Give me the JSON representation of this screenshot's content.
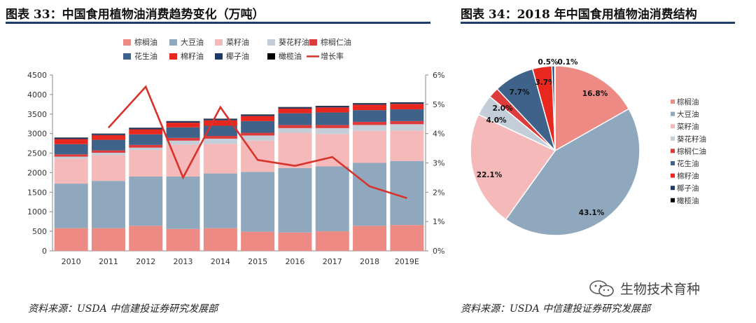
{
  "left": {
    "title": "图表 33：中国食用植物油消费趋势变化（万吨）",
    "source": "资料来源：USDA   中信建投证券研究发展部"
  },
  "right": {
    "title": "图表 34：2018 年中国食用植物油消费结构",
    "source": "资料来源：USDA   中信建投证券研究发展部"
  },
  "watermark": {
    "text": "生物技术育种",
    "icon": "wechat-icon"
  },
  "chart_data": [
    {
      "type": "bar",
      "stacked": true,
      "title": "中国食用植物油消费趋势变化（万吨）",
      "categories": [
        "2010",
        "2011",
        "2012",
        "2013",
        "2014",
        "2015",
        "2016",
        "2017",
        "2018",
        "2019E"
      ],
      "ylim": [
        0,
        4500
      ],
      "yticks": [
        0,
        500,
        1000,
        1500,
        2000,
        2500,
        3000,
        3500,
        4000,
        4500
      ],
      "y2lim": [
        0,
        6
      ],
      "y2ticks": [
        "0%",
        "1%",
        "2%",
        "3%",
        "4%",
        "5%",
        "6%"
      ],
      "series": [
        {
          "name": "棕榈油",
          "color": "#ee8a84",
          "values": [
            580,
            580,
            640,
            560,
            580,
            490,
            470,
            500,
            640,
            660
          ]
        },
        {
          "name": "大豆油",
          "color": "#8fa8be",
          "values": [
            1140,
            1210,
            1260,
            1340,
            1400,
            1530,
            1650,
            1660,
            1610,
            1640
          ]
        },
        {
          "name": "菜籽油",
          "color": "#f4b9b8",
          "values": [
            640,
            660,
            680,
            820,
            760,
            800,
            900,
            830,
            820,
            780
          ]
        },
        {
          "name": "葵花籽油",
          "color": "#c3ced8",
          "values": [
            50,
            60,
            60,
            100,
            130,
            130,
            120,
            150,
            150,
            160
          ]
        },
        {
          "name": "棕榈仁油",
          "color": "#dd3b3b",
          "values": [
            60,
            60,
            70,
            70,
            70,
            70,
            80,
            80,
            80,
            80
          ]
        },
        {
          "name": "花生油",
          "color": "#3e6289",
          "values": [
            260,
            270,
            270,
            270,
            260,
            300,
            300,
            320,
            300,
            300
          ]
        },
        {
          "name": "棉籽油",
          "color": "#e8281e",
          "values": [
            130,
            120,
            130,
            120,
            140,
            130,
            120,
            130,
            140,
            140
          ]
        },
        {
          "name": "椰子油",
          "color": "#1d3a66",
          "values": [
            30,
            30,
            30,
            30,
            30,
            30,
            30,
            30,
            30,
            30
          ]
        },
        {
          "name": "橄榄油",
          "color": "#000000",
          "values": [
            10,
            10,
            10,
            10,
            10,
            10,
            10,
            10,
            10,
            10
          ]
        }
      ],
      "line": {
        "name": "增长率",
        "color": "#d8322b",
        "axis": "right",
        "values": [
          null,
          4.2,
          5.6,
          2.5,
          4.9,
          3.1,
          2.9,
          3.2,
          2.2,
          1.8
        ]
      }
    },
    {
      "type": "pie",
      "title": "2018 年中国食用植物油消费结构",
      "slices": [
        {
          "name": "棕榈油",
          "value": 16.8,
          "label": "16.8%",
          "color": "#ee8a84"
        },
        {
          "name": "大豆油",
          "value": 43.1,
          "label": "43.1%",
          "color": "#8fa8be"
        },
        {
          "name": "菜籽油",
          "value": 22.1,
          "label": "22.1%",
          "color": "#f4b9b8"
        },
        {
          "name": "葵花籽油",
          "value": 4.0,
          "label": "4.0%",
          "color": "#c3ced8"
        },
        {
          "name": "棕榈仁油",
          "value": 2.0,
          "label": "2.0%",
          "color": "#dd3b3b"
        },
        {
          "name": "花生油",
          "value": 7.7,
          "label": "7.7%",
          "color": "#3e6289"
        },
        {
          "name": "棉籽油",
          "value": 3.7,
          "label": "3.7%",
          "color": "#e8281e"
        },
        {
          "name": "椰子油",
          "value": 0.5,
          "label": "0.5%",
          "color": "#1d3a66"
        },
        {
          "name": "橄榄油",
          "value": 0.1,
          "label": "0.1%",
          "color": "#000000"
        }
      ]
    }
  ]
}
